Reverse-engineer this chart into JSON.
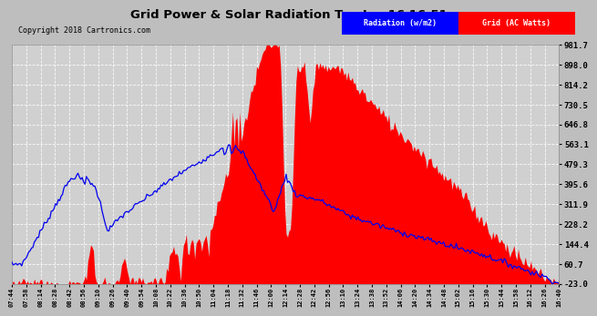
{
  "title": "Grid Power & Solar Radiation Tue Jan 16 16:51",
  "copyright": "Copyright 2018 Cartronics.com",
  "legend_radiation": "Radiation (w/m2)",
  "legend_grid": "Grid (AC Watts)",
  "yticks": [
    981.7,
    898.0,
    814.2,
    730.5,
    646.8,
    563.1,
    479.3,
    395.6,
    311.9,
    228.2,
    144.4,
    60.7,
    -23.0
  ],
  "ylim": [
    -23.0,
    981.7
  ],
  "fig_bg": "#c0c0c0",
  "plot_bg": "#d8d8d8",
  "grid_color": "white",
  "radiation_color": "#0000ee",
  "grid_fill_color": "red",
  "xtick_labels": [
    "07:44",
    "07:58",
    "08:14",
    "08:28",
    "08:42",
    "08:56",
    "09:10",
    "09:26",
    "09:40",
    "09:54",
    "10:08",
    "10:22",
    "10:36",
    "10:50",
    "11:04",
    "11:18",
    "11:32",
    "11:46",
    "12:00",
    "12:14",
    "12:28",
    "12:42",
    "12:56",
    "13:10",
    "13:24",
    "13:38",
    "13:52",
    "14:06",
    "14:20",
    "14:34",
    "14:48",
    "15:02",
    "15:16",
    "15:30",
    "15:44",
    "15:58",
    "16:12",
    "16:26",
    "16:40"
  ],
  "n_points": 390
}
